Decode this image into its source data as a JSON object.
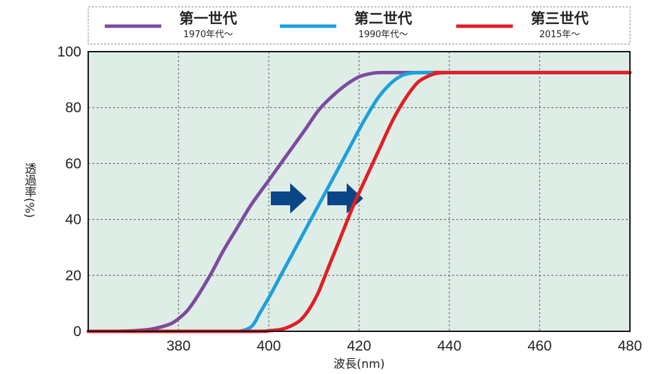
{
  "chart_data": {
    "type": "line",
    "xlabel": "波長(nm)",
    "ylabel": "透過率(%)",
    "xlim": [
      360,
      480
    ],
    "ylim": [
      0,
      100
    ],
    "xticks": [
      380,
      400,
      420,
      440,
      460,
      480
    ],
    "yticks": [
      0,
      20,
      40,
      60,
      80,
      100
    ],
    "grid": true,
    "legend_position": "top",
    "plot_background": "#deeee7",
    "arrow_color": "#0a4587",
    "series": [
      {
        "name": "第一世代",
        "era": "1970年代〜",
        "color": "#7d4b9f",
        "x": [
          360,
          365,
          370,
          374,
          378,
          380,
          382,
          384,
          387,
          390,
          393,
          396,
          400,
          404,
          408,
          411,
          414,
          417,
          420,
          423,
          425,
          430,
          440,
          480
        ],
        "y": [
          0,
          0,
          0.2,
          0.8,
          2.5,
          4.5,
          7.5,
          12,
          20,
          29,
          37,
          45,
          54,
          63,
          72,
          79,
          84,
          88,
          91,
          92.3,
          92.5,
          92.5,
          92.5,
          92.5
        ]
      },
      {
        "name": "第二世代",
        "era": "1990年代〜",
        "color": "#1ca0de",
        "x": [
          360,
          390,
          394,
          396,
          397,
          398,
          400,
          403,
          406,
          409,
          412,
          415,
          418,
          421,
          424,
          426,
          428,
          430,
          432,
          434,
          440,
          480
        ],
        "y": [
          0,
          0,
          0.2,
          1.5,
          3.5,
          6.5,
          12,
          21,
          30,
          39,
          48,
          57,
          66,
          75,
          83,
          87,
          90,
          91.8,
          92.4,
          92.5,
          92.5,
          92.5
        ]
      },
      {
        "name": "第三世代",
        "era": "2015年〜",
        "color": "#e21f26",
        "x": [
          360,
          395,
          400,
          403,
          405,
          407,
          409,
          411,
          413,
          415,
          417,
          419,
          421,
          423,
          425,
          427,
          429,
          431,
          433,
          435,
          437,
          439,
          440,
          480
        ],
        "y": [
          0,
          0,
          0.2,
          0.8,
          2,
          4,
          8,
          14,
          22,
          30,
          38,
          46,
          53,
          60,
          67,
          74,
          80,
          85,
          89,
          91,
          92.2,
          92.5,
          92.5,
          92.5
        ]
      }
    ]
  }
}
